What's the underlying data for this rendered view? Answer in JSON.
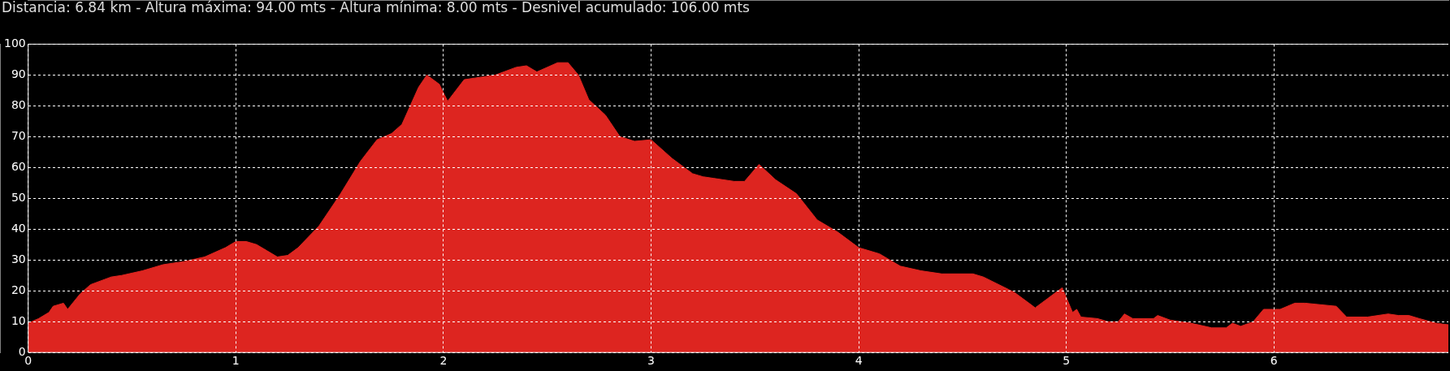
{
  "chart_data": {
    "type": "area",
    "title": "Distancia: 6.84 km - Altura máxima: 94.00 mts - Altura mínima: 8.00 mts - Desnivel acumulado: 106.00 mts",
    "x": [
      0,
      0.05,
      0.1,
      0.12,
      0.17,
      0.19,
      0.25,
      0.3,
      0.4,
      0.45,
      0.55,
      0.65,
      0.75,
      0.85,
      0.95,
      1.0,
      1.05,
      1.1,
      1.15,
      1.2,
      1.25,
      1.3,
      1.4,
      1.5,
      1.6,
      1.68,
      1.75,
      1.8,
      1.88,
      1.92,
      1.98,
      2.02,
      2.1,
      2.15,
      2.25,
      2.35,
      2.4,
      2.45,
      2.55,
      2.6,
      2.65,
      2.7,
      2.78,
      2.85,
      2.92,
      3.0,
      3.1,
      3.2,
      3.25,
      3.3,
      3.4,
      3.45,
      3.52,
      3.6,
      3.7,
      3.8,
      3.9,
      4.0,
      4.1,
      4.2,
      4.3,
      4.4,
      4.55,
      4.6,
      4.75,
      4.85,
      4.98,
      5.03,
      5.05,
      5.07,
      5.15,
      5.2,
      5.25,
      5.28,
      5.32,
      5.42,
      5.44,
      5.5,
      5.6,
      5.7,
      5.77,
      5.8,
      5.84,
      5.9,
      5.95,
      6.03,
      6.1,
      6.15,
      6.3,
      6.35,
      6.45,
      6.55,
      6.6,
      6.65,
      6.7,
      6.78,
      6.84
    ],
    "values": [
      9.5,
      11,
      13,
      15,
      16,
      14,
      19,
      22,
      24.5,
      25,
      26.5,
      28.5,
      29.5,
      31,
      34,
      36,
      36,
      35,
      33,
      31,
      31.5,
      34,
      41,
      51,
      62,
      69,
      71,
      74,
      86,
      90,
      87,
      81.5,
      88.5,
      89,
      90,
      92.5,
      93,
      91,
      94,
      94,
      90,
      82,
      77,
      70,
      68.5,
      69,
      63,
      58,
      57,
      56.5,
      55.5,
      55.5,
      61,
      56,
      51.5,
      43,
      39,
      34,
      32,
      28,
      26.5,
      25.5,
      25.5,
      24.5,
      19.5,
      14.5,
      21,
      13,
      14,
      11.5,
      11,
      10,
      10,
      12.5,
      11,
      11,
      12,
      10.5,
      9.5,
      8,
      8,
      9.5,
      8.5,
      10,
      14,
      14,
      16,
      16,
      15,
      11.5,
      11.5,
      12.5,
      12,
      12,
      11,
      9.5,
      9
    ],
    "color": "#dd2520",
    "xlim": [
      0,
      6.84
    ],
    "xticks": [
      0,
      1,
      2,
      3,
      4,
      5,
      6
    ],
    "ylim": [
      0,
      100
    ],
    "yticks": [
      0,
      10,
      20,
      30,
      40,
      50,
      60,
      70,
      80,
      90,
      100
    ],
    "grid": true
  }
}
